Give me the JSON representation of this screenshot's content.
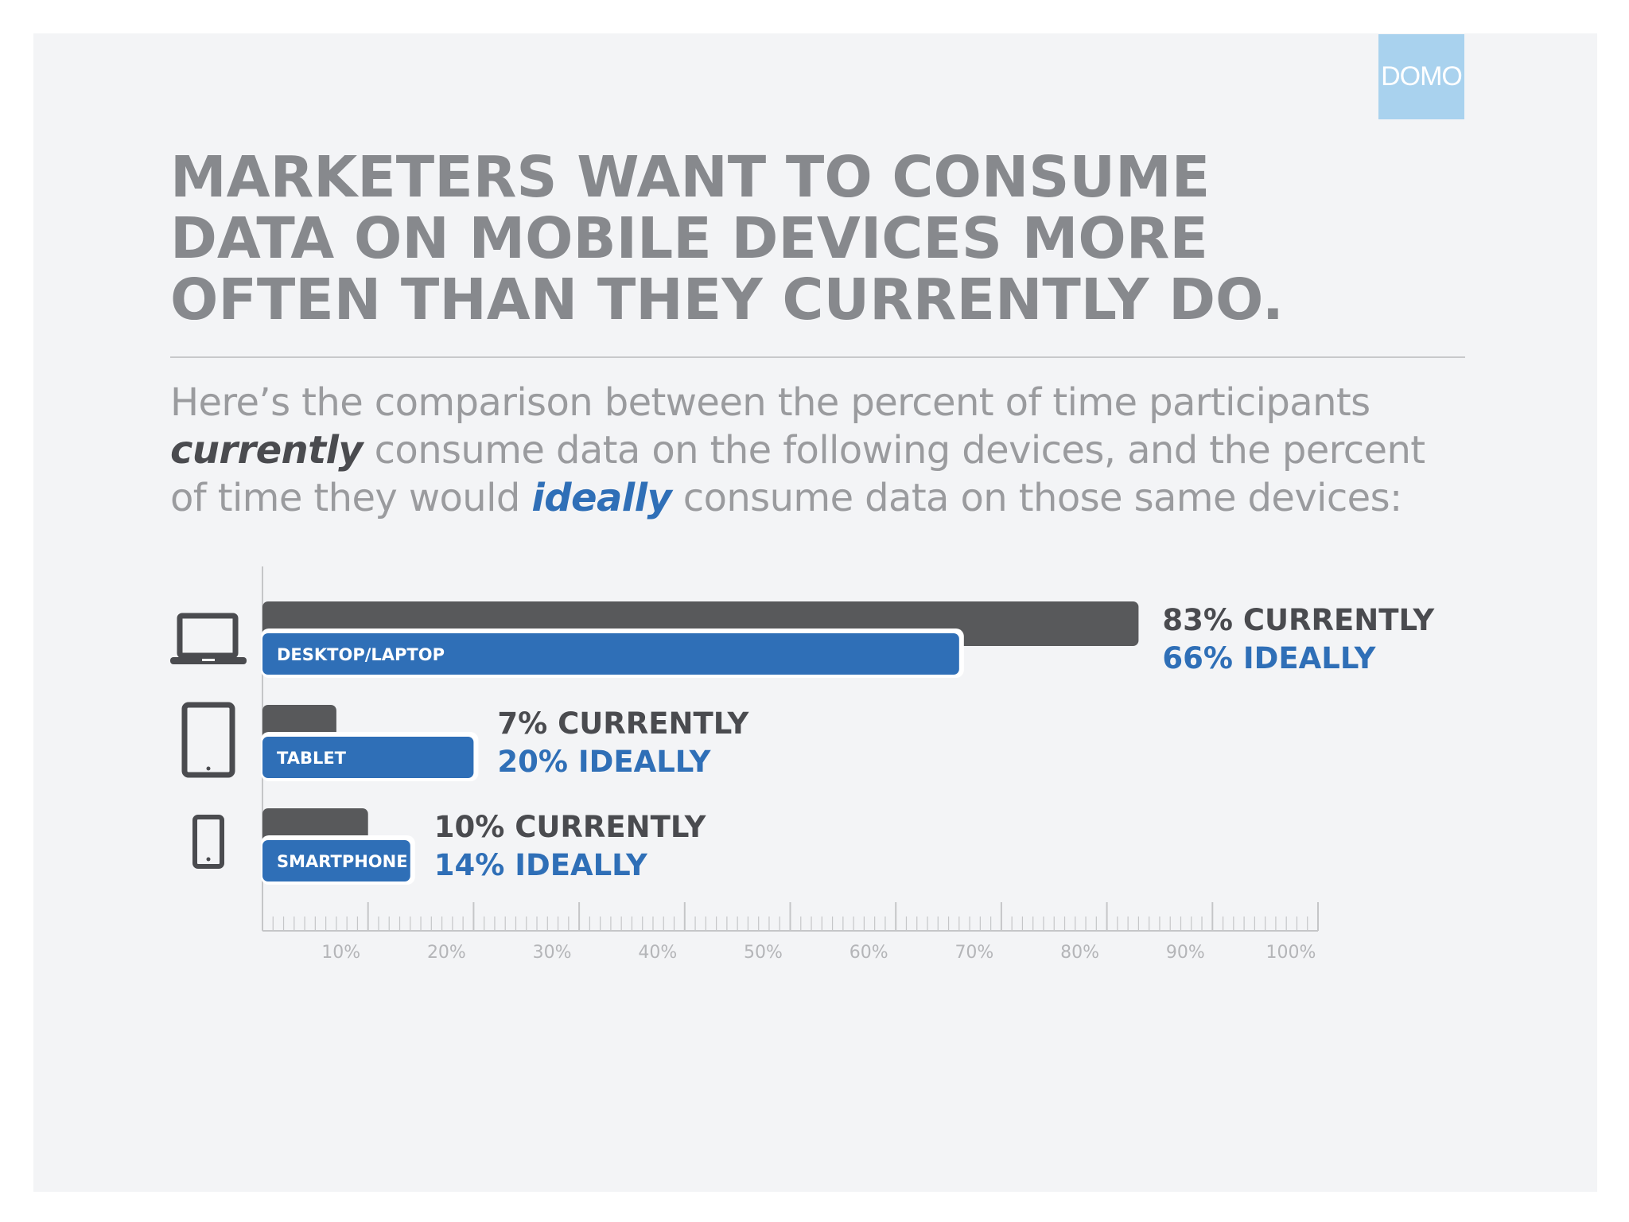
{
  "brand": {
    "logo_text": "DOMO",
    "logo_color": "#a9d2ee"
  },
  "headline": {
    "lines": [
      "MARKETERS WANT TO CONSUME",
      "DATA ON MOBILE DEVICES MORE",
      "OFTEN THAN THEY CURRENTLY DO."
    ]
  },
  "intro": {
    "line1": "Here’s the comparison between the percent of time participants",
    "line2_em": "currently",
    "line2_rest": " consume data on the following devices, and the percent",
    "line3_pre": "of time they would ",
    "line3_em": "ideally",
    "line3_rest": " consume data on those same devices:"
  },
  "colors": {
    "current": "#58595b",
    "ideal": "#2f6fb7",
    "axis": "#c5c6c8",
    "tick_label": "#b4b5b8"
  },
  "chart_data": {
    "type": "bar",
    "orientation": "horizontal",
    "categories": [
      "DESKTOP/LAPTOP",
      "TABLET",
      "SMARTPHONE"
    ],
    "icons": [
      "laptop-icon",
      "tablet-icon",
      "smartphone-icon"
    ],
    "series": [
      {
        "name": "CURRENTLY",
        "values": [
          83,
          7,
          10
        ]
      },
      {
        "name": "IDEALLY",
        "values": [
          66,
          20,
          14
        ]
      }
    ],
    "value_labels": [
      [
        "83% CURRENTLY",
        "66% IDEALLY"
      ],
      [
        "7% CURRENTLY",
        "20% IDEALLY"
      ],
      [
        "10% CURRENTLY",
        "14% IDEALLY"
      ]
    ],
    "x_ticks": [
      "10%",
      "20%",
      "30%",
      "40%",
      "50%",
      "60%",
      "70%",
      "80%",
      "90%",
      "100%"
    ],
    "xlim": [
      0,
      100
    ],
    "grid": false
  }
}
